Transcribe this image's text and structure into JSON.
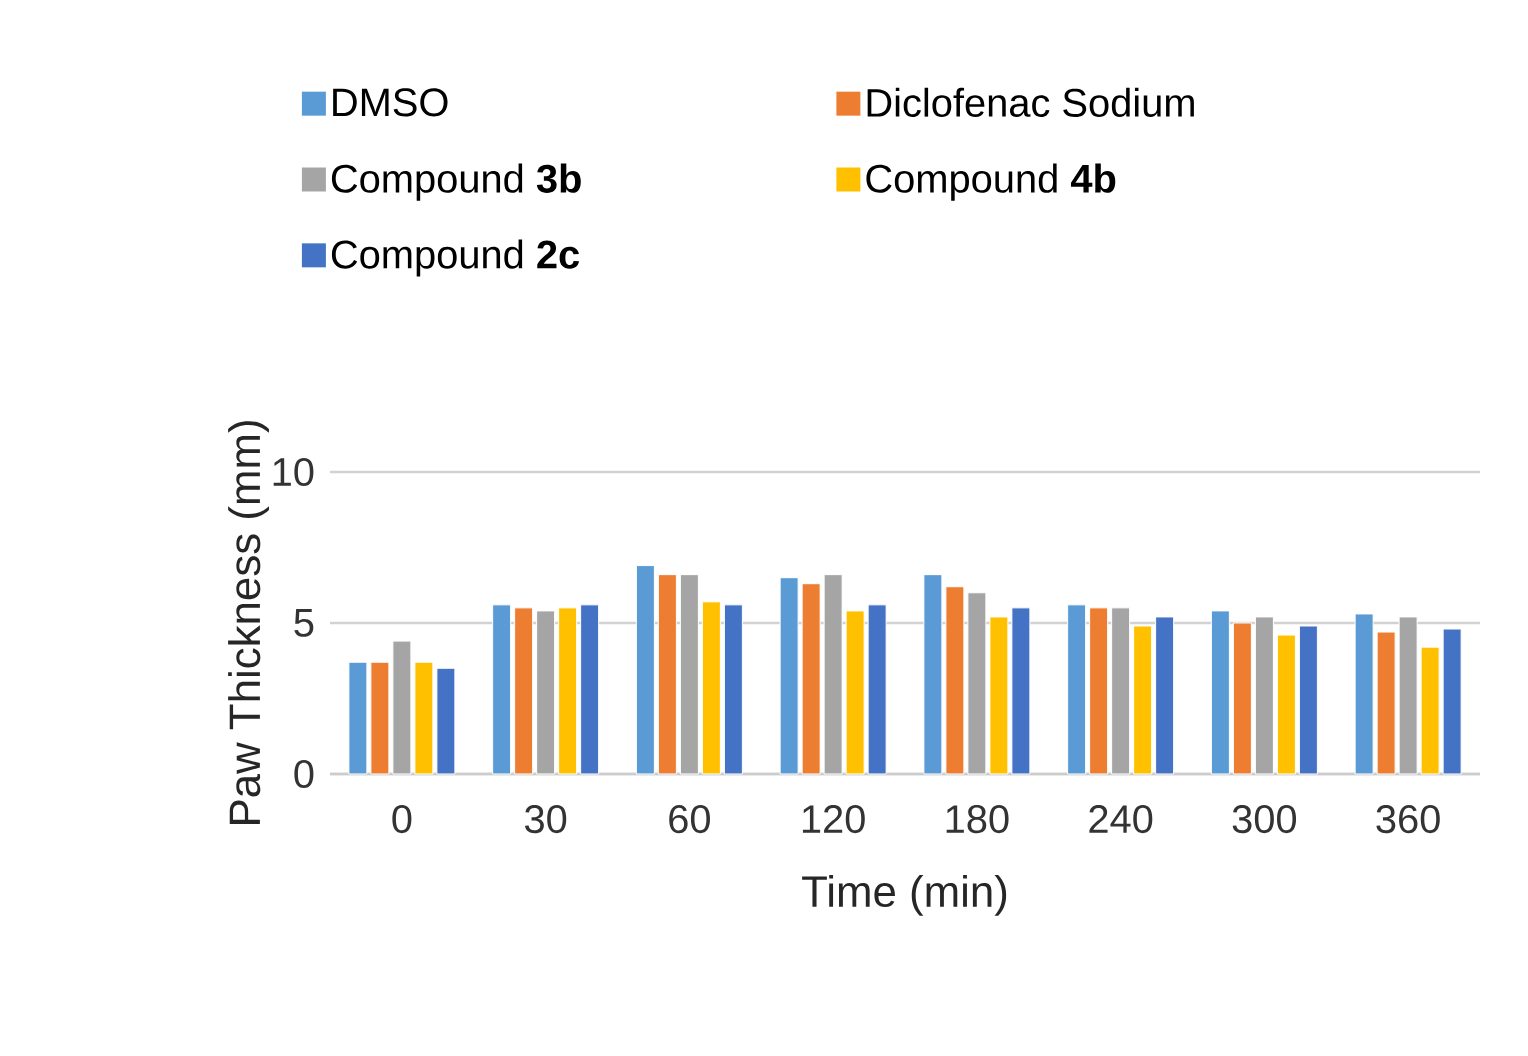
{
  "chart_data": {
    "type": "bar",
    "xlabel": "Time (min)",
    "ylabel": "Paw Thickness (mm)",
    "categories": [
      "0",
      "30",
      "60",
      "120",
      "180",
      "240",
      "300",
      "360"
    ],
    "series": [
      {
        "name": "DMSO",
        "color": "#5b9bd5",
        "values": [
          3.7,
          5.6,
          6.9,
          6.5,
          6.6,
          5.6,
          5.4,
          5.3
        ]
      },
      {
        "name": "Diclofenac Sodium",
        "color": "#ed7d31",
        "values": [
          3.7,
          5.5,
          6.6,
          6.3,
          6.2,
          5.5,
          5.0,
          4.7
        ]
      },
      {
        "name": "Compound **3b**",
        "color": "#a5a5a5",
        "values": [
          4.4,
          5.4,
          6.6,
          6.6,
          6.0,
          5.5,
          5.2,
          5.2
        ]
      },
      {
        "name": "Compound **4b**",
        "color": "#ffc000",
        "values": [
          3.7,
          5.5,
          5.7,
          5.4,
          5.2,
          4.9,
          4.6,
          4.2
        ]
      },
      {
        "name": "Compound **2c**",
        "color": "#4472c4",
        "values": [
          3.5,
          5.6,
          5.6,
          5.6,
          5.5,
          5.2,
          4.9,
          4.8
        ]
      }
    ],
    "ylim": [
      0,
      10
    ],
    "yticks": [
      0,
      5,
      10
    ],
    "grid": "y",
    "legend": "top"
  }
}
